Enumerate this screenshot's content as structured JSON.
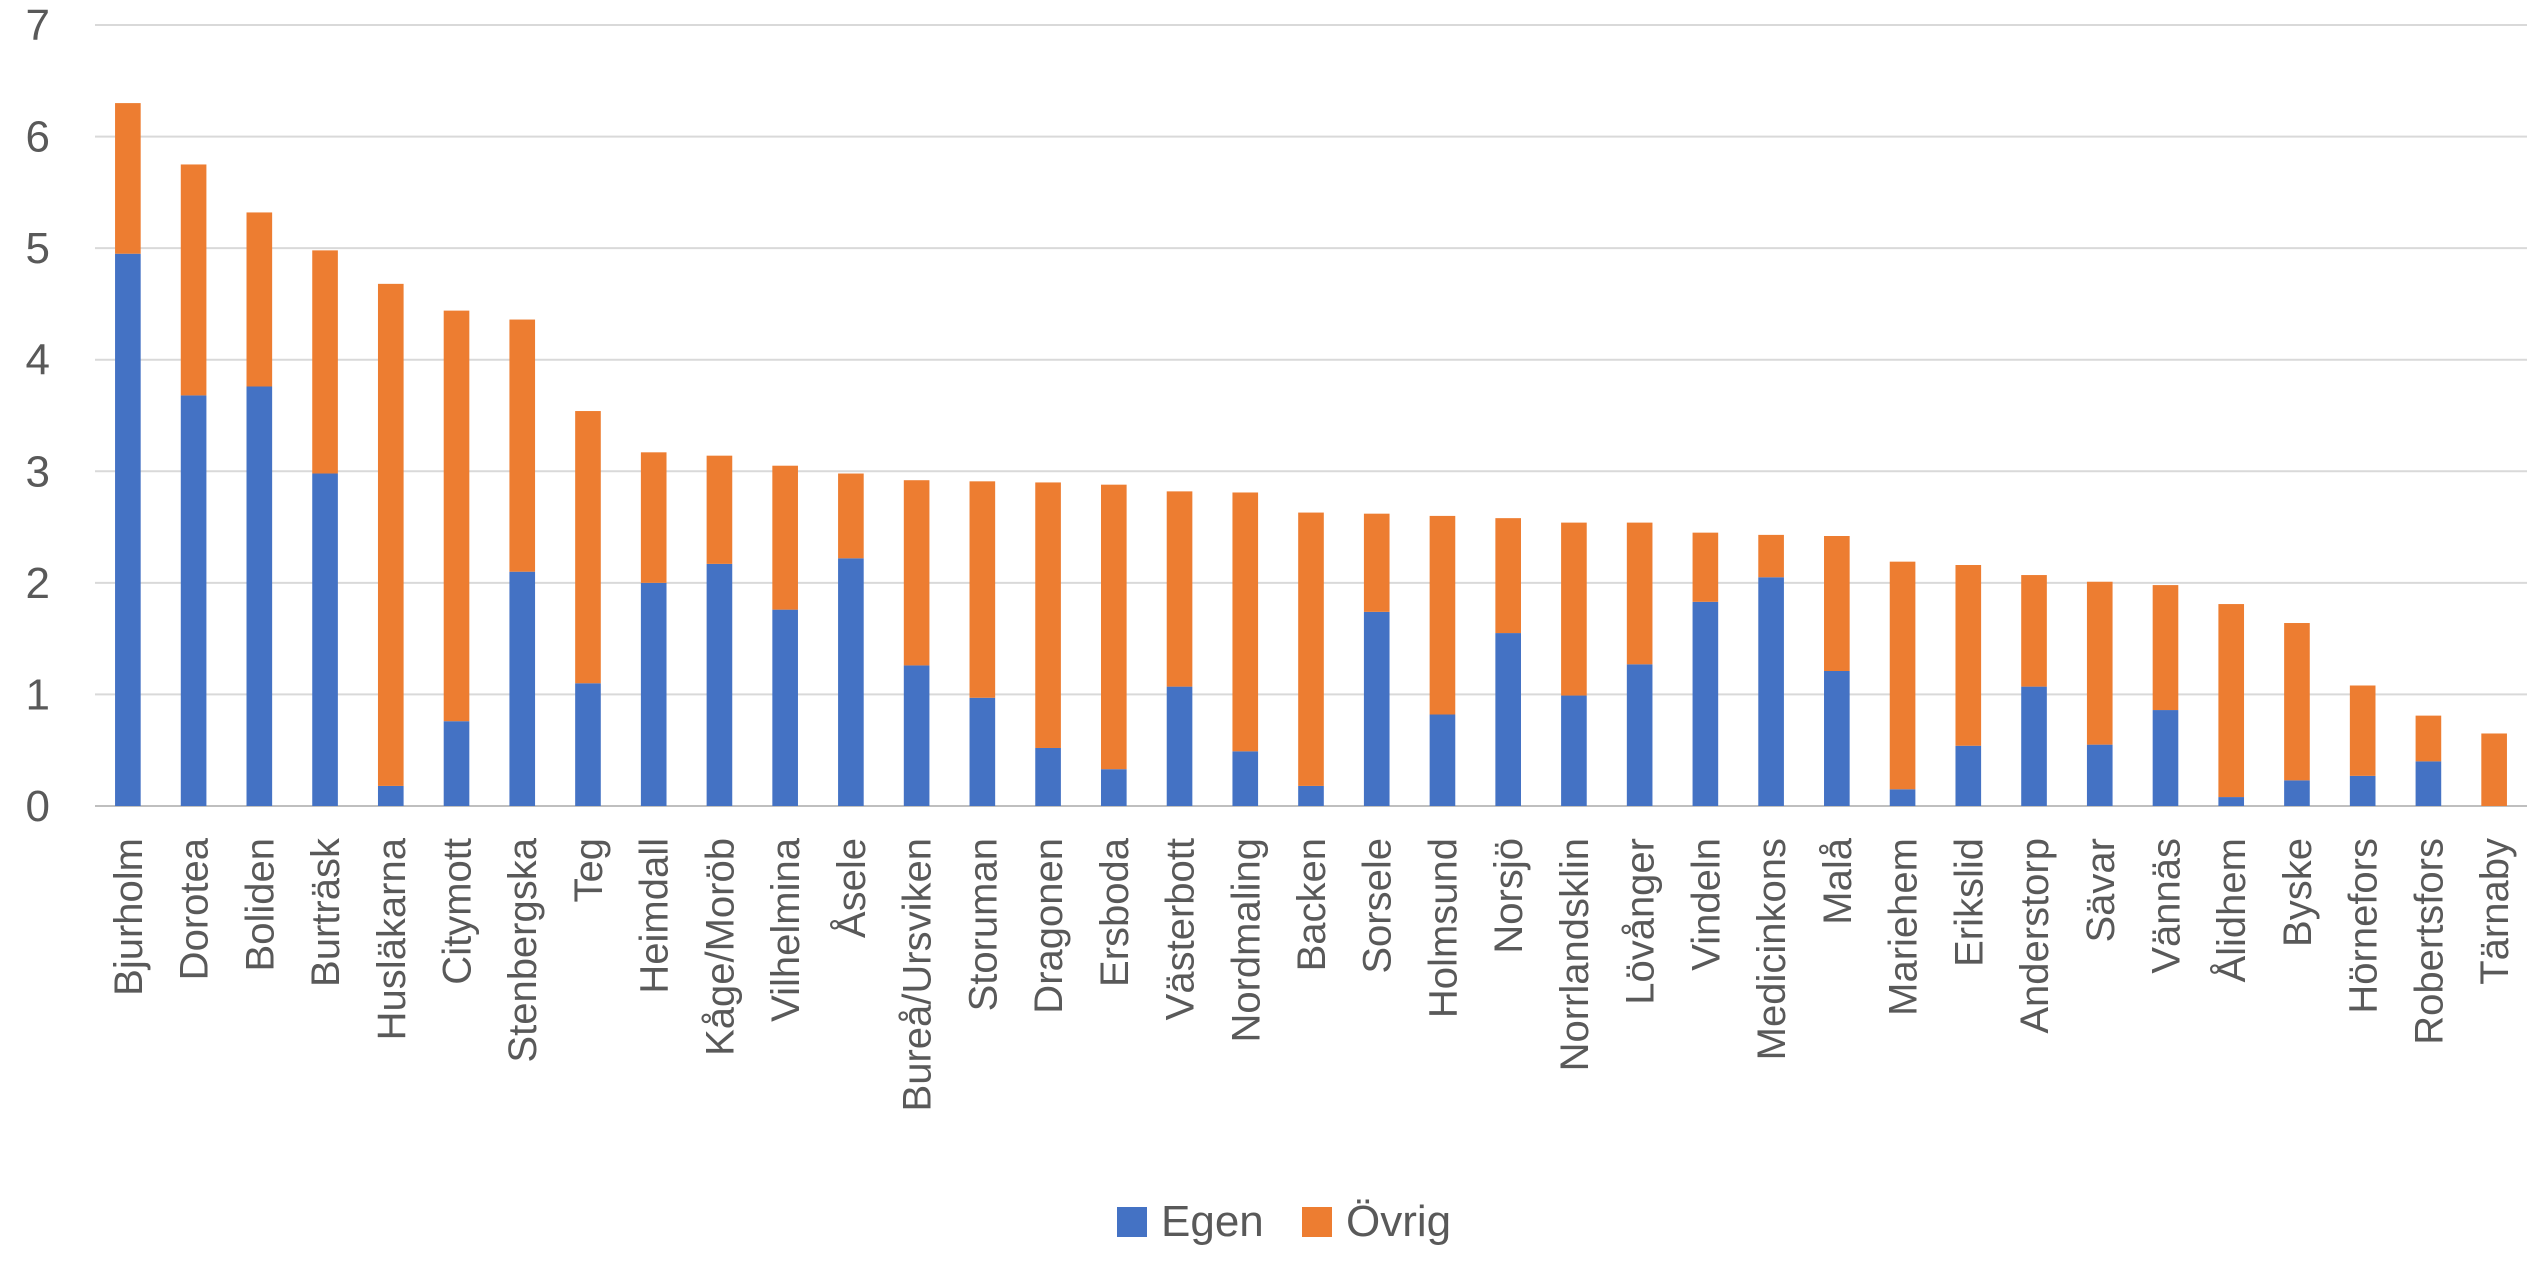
{
  "chart_data": {
    "type": "bar",
    "stacked": true,
    "title": "",
    "xlabel": "",
    "ylabel": "",
    "ylim": [
      0,
      7
    ],
    "yticks": [
      0,
      1,
      2,
      3,
      4,
      5,
      6,
      7
    ],
    "grid": "horizontal",
    "legend_position": "bottom",
    "categories": [
      "Bjurholm",
      "Dorotea",
      "Boliden",
      "Burträsk",
      "Husläkarna",
      "Citymott",
      "Stenbergska",
      "Teg",
      "Heimdall",
      "Kåge/Moröb",
      "Vilhelmina",
      "Åsele",
      "Bureå/Ursviken",
      "Storuman",
      "Dragonen",
      "Ersboda",
      "Västerbott",
      "Nordmaling",
      "Backen",
      "Sorsele",
      "Holmsund",
      "Norsjö",
      "Norrlandsklin",
      "Lövånger",
      "Vindeln",
      "Medicinkons",
      "Malå",
      "Mariehem",
      "Erikslid",
      "Anderstorp",
      "Sävar",
      "Vännäs",
      "Ålidhem",
      "Byske",
      "Hörnefors",
      "Robertsfors",
      "Tärnaby"
    ],
    "series": [
      {
        "name": "Egen",
        "color": "#4472C4",
        "values": [
          4.95,
          3.68,
          3.76,
          2.98,
          0.18,
          0.76,
          2.1,
          1.1,
          2.0,
          2.17,
          1.76,
          2.22,
          1.26,
          0.97,
          0.52,
          0.33,
          1.07,
          0.49,
          0.18,
          1.74,
          0.82,
          1.55,
          0.99,
          1.27,
          1.83,
          2.05,
          1.21,
          0.15,
          0.54,
          1.07,
          0.55,
          0.86,
          0.08,
          0.23,
          0.27,
          0.4,
          0.0
        ]
      },
      {
        "name": "Övrig",
        "color": "#ED7D31",
        "values": [
          1.35,
          2.07,
          1.56,
          2.0,
          4.5,
          3.68,
          2.26,
          2.44,
          1.17,
          0.97,
          1.29,
          0.76,
          1.66,
          1.94,
          2.38,
          2.55,
          1.75,
          2.32,
          2.45,
          0.88,
          1.78,
          1.03,
          1.55,
          1.27,
          0.62,
          0.38,
          1.21,
          2.04,
          1.62,
          1.0,
          1.46,
          1.12,
          1.73,
          1.41,
          0.81,
          0.41,
          0.65
        ]
      }
    ]
  }
}
